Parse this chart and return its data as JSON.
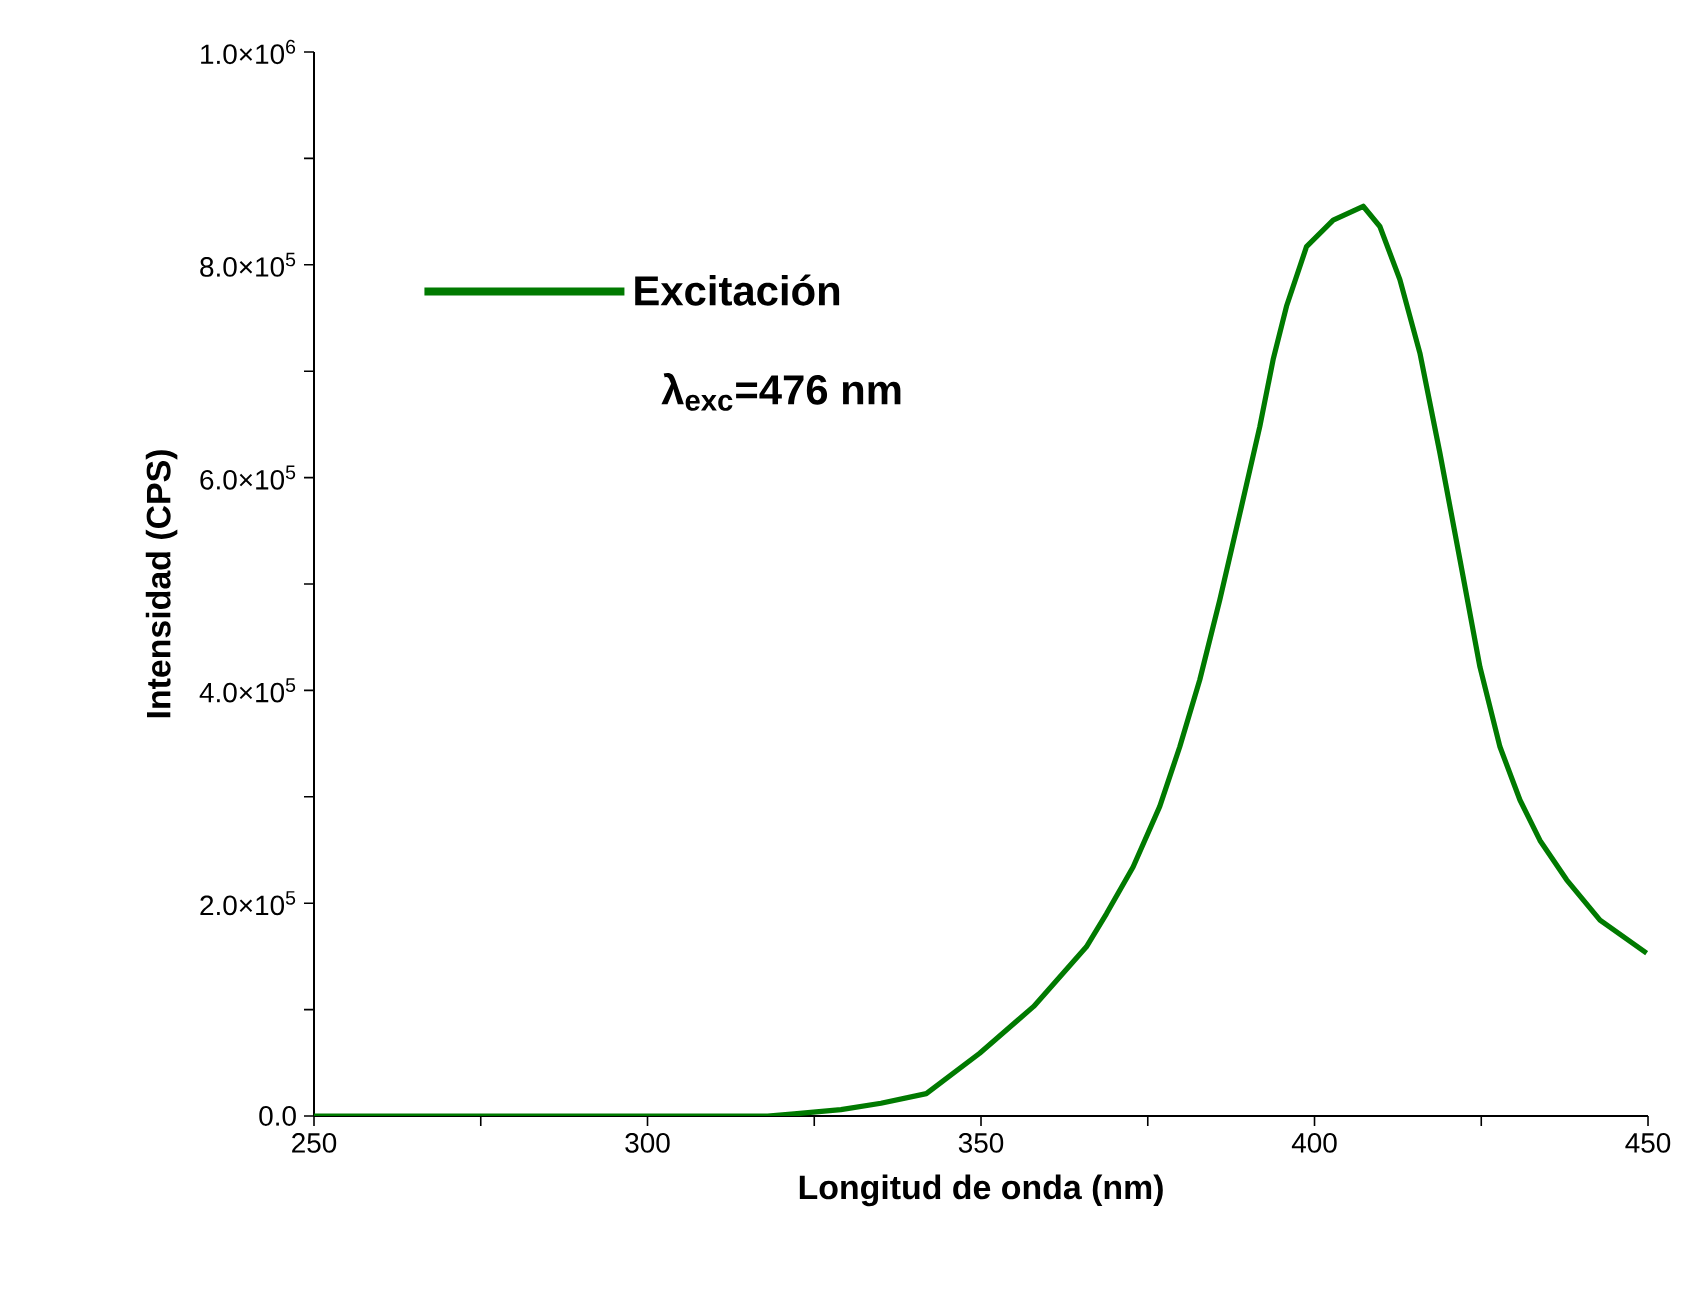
{
  "chart_data": {
    "type": "line",
    "xlabel": "Longitud de onda (nm)",
    "ylabel": "Intensidad (CPS)",
    "series": [
      {
        "name": "Excitación",
        "color": "#007a00",
        "x": [
          250,
          280,
          300,
          318,
          322,
          329,
          335,
          341.8,
          349.8,
          357.9,
          365.8,
          368.8,
          372.8,
          376.8,
          379.8,
          382.8,
          385.8,
          388.8,
          391.8,
          393.8,
          395.8,
          398.8,
          402.8,
          407.3,
          409.8,
          412.8,
          415.8,
          418.8,
          421.8,
          424.8,
          427.8,
          430.8,
          433.8,
          437.8,
          442.8,
          449.8
        ],
        "values": [
          0,
          0,
          0,
          0,
          2000,
          6000,
          12000,
          21000,
          59000,
          103000,
          159000,
          190000,
          234000,
          291000,
          347000,
          410000,
          485000,
          566000,
          648000,
          711000,
          761000,
          817000,
          842000,
          855000,
          836000,
          786000,
          717000,
          623000,
          523000,
          422000,
          347000,
          297000,
          259000,
          222000,
          184000,
          153000
        ]
      }
    ],
    "annotations": [
      "λ$_{exc}$=476 nm"
    ],
    "xlim": [
      250,
      450
    ],
    "ylim": [
      0,
      1000000
    ],
    "xticks": [
      250,
      {
        "value": 275,
        "label": null
      },
      300,
      {
        "value": 325,
        "label": null
      },
      350,
      {
        "value": 375,
        "label": null
      },
      400,
      {
        "value": 425,
        "label": null
      },
      450
    ],
    "yticks": [
      {
        "value": 0,
        "label": "0.0"
      },
      {
        "value": 100000,
        "label": null
      },
      {
        "value": 200000,
        "label": "2.0×10$^{5}$"
      },
      {
        "value": 300000,
        "label": null
      },
      {
        "value": 400000,
        "label": "4.0×10$^{5}$"
      },
      {
        "value": 500000,
        "label": null
      },
      {
        "value": 600000,
        "label": "6.0×10$^{5}$"
      },
      {
        "value": 700000,
        "label": null
      },
      {
        "value": 800000,
        "label": "8.0×10$^{5}$"
      },
      {
        "value": 900000,
        "label": null
      },
      {
        "value": 1000000,
        "label": "1.0×10$^{6}$"
      }
    ],
    "legend": "top left",
    "grid": false,
    "line_style": "solid",
    "marker": "none"
  }
}
